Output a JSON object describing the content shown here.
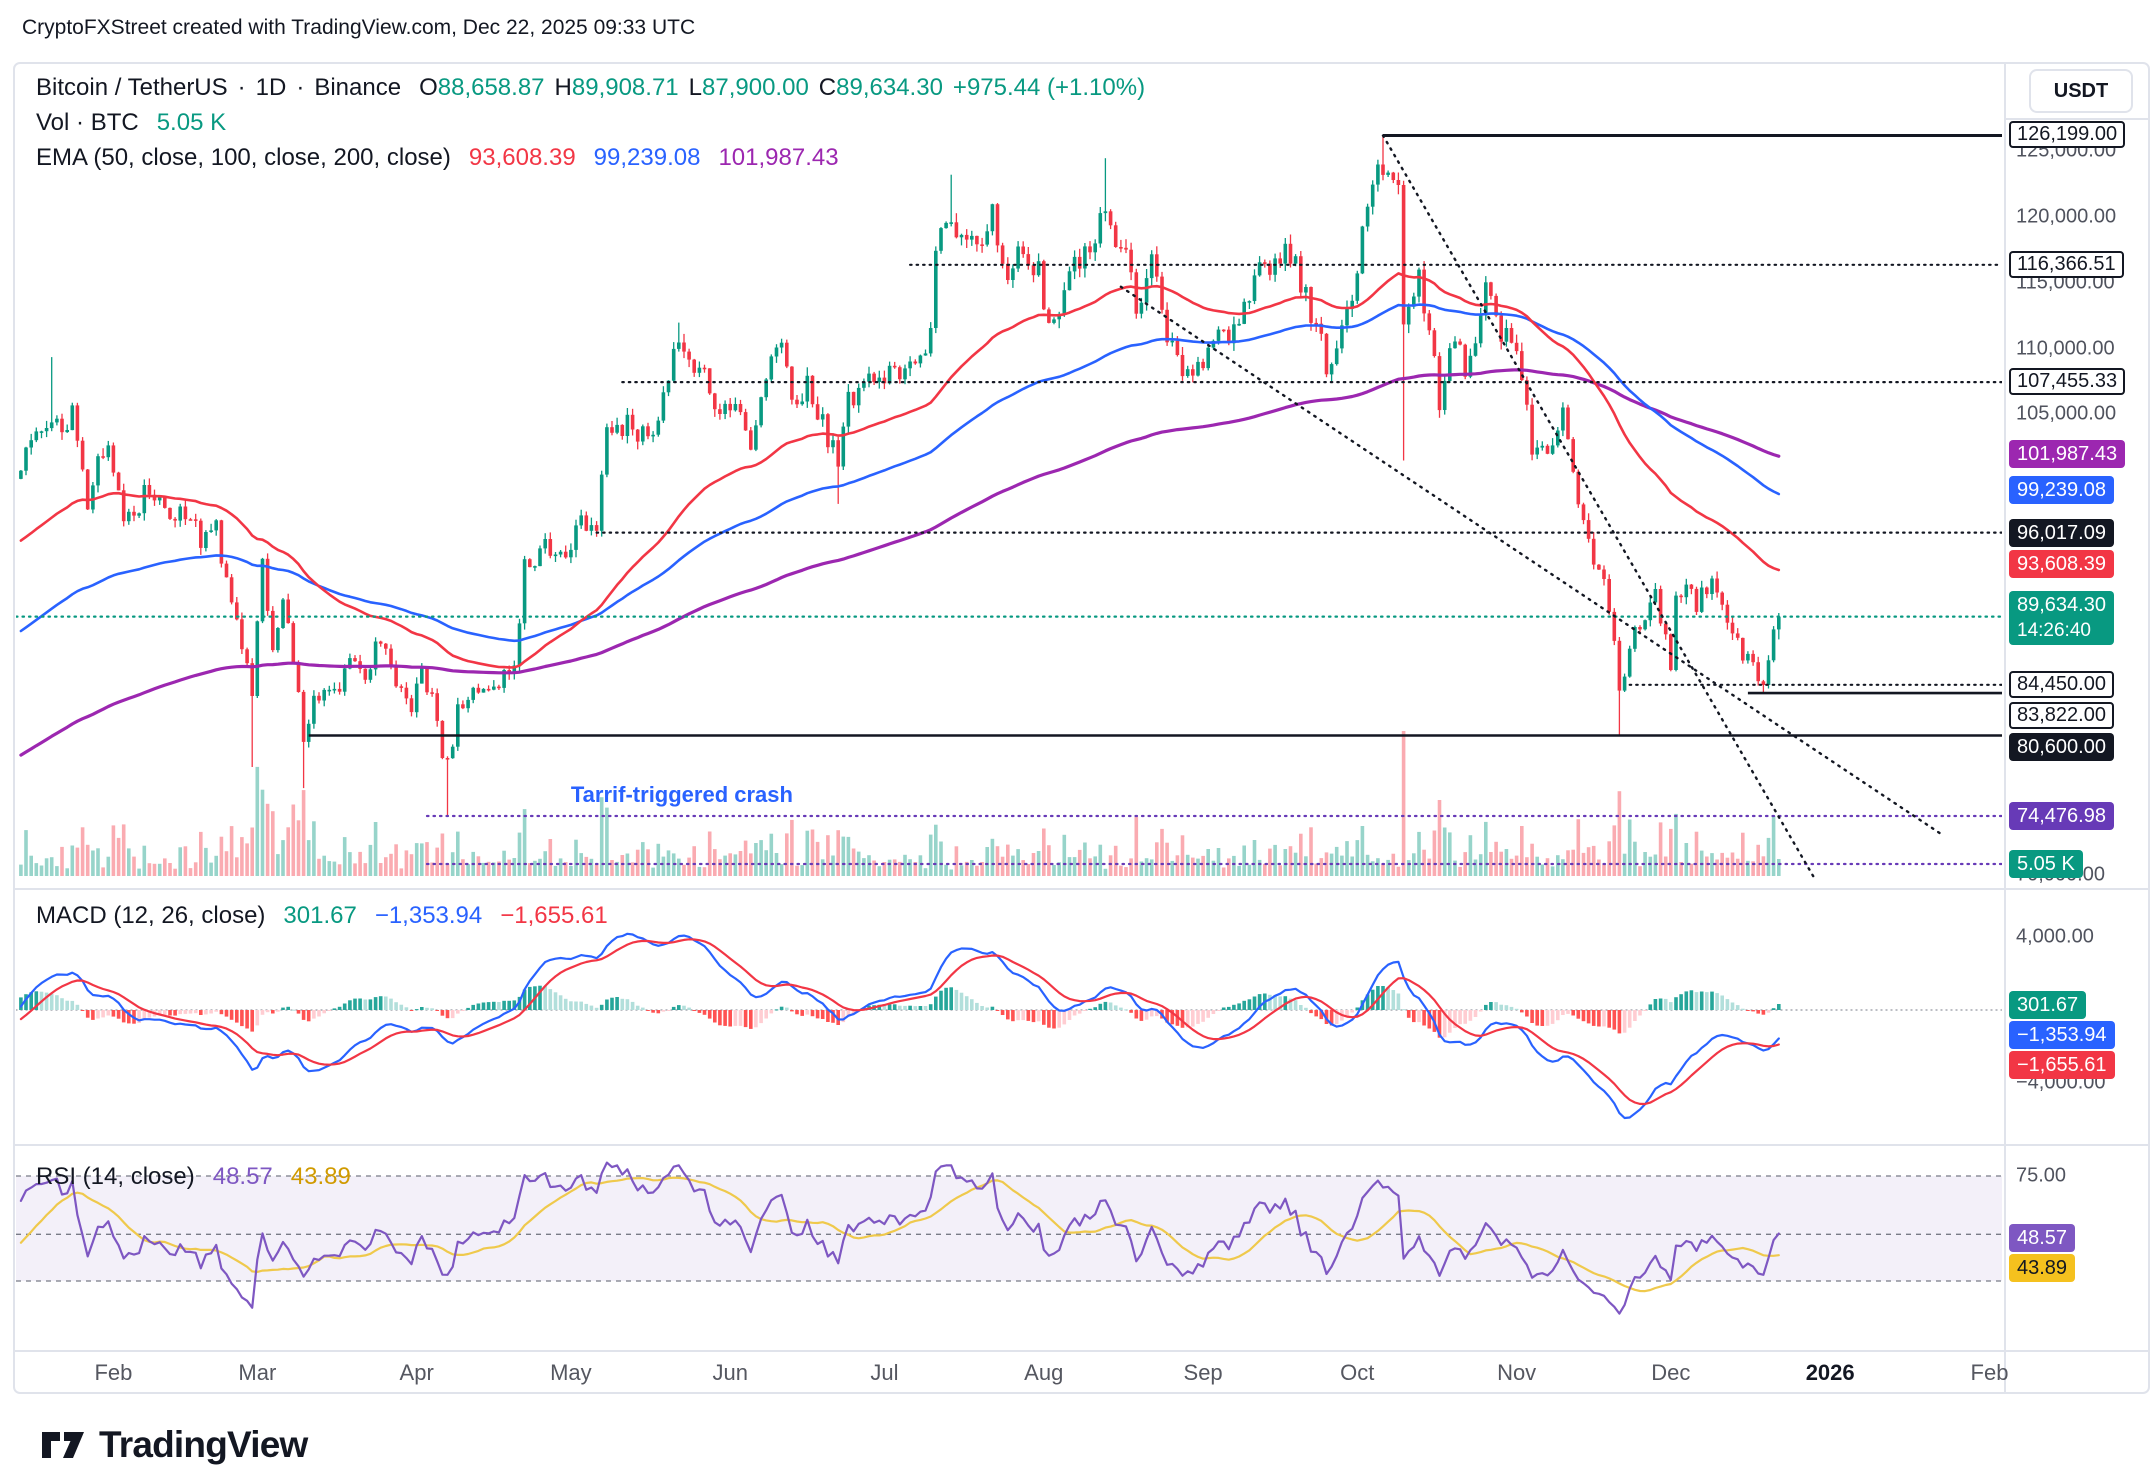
{
  "attribution": "CryptoFXStreet created with TradingView.com, Dec 22, 2025 09:33 UTC",
  "footer": {
    "brand": "TradingView"
  },
  "annotation": {
    "text": "Tarrif-triggered crash",
    "color": "#2962FF",
    "x": "2025-05-01",
    "y": 76000
  },
  "header": {
    "symbol": "Bitcoin / TetherUS",
    "sep": "·",
    "interval": "1D",
    "exchange": "Binance",
    "o_label": "O",
    "h_label": "H",
    "l_label": "L",
    "c_label": "C",
    "o": "88,658.87",
    "h": "89,908.71",
    "l": "87,900.00",
    "c": "89,634.30",
    "change": "+975.44 (+1.10%)",
    "volume_label": "Vol · BTC",
    "volume_value": "5.05 K",
    "ema_label": "EMA (50, close, 100, close, 200, close)",
    "ema_values": [
      "93,608.39",
      "99,239.08",
      "101,987.43"
    ]
  },
  "macd_pane": {
    "label": "MACD (12, 26, close)",
    "values": [
      "301.67",
      "−1,353.94",
      "−1,655.61"
    ],
    "axis_ticks": [
      {
        "label": "4,000.00",
        "value": 4000
      },
      {
        "label": "−4,000.00",
        "value": -4000
      }
    ],
    "chips": [
      {
        "label": "301.67",
        "value": 301.67,
        "color": "#089981",
        "text": "#FFFFFF"
      },
      {
        "label": "−1,353.94",
        "value": -1353.94,
        "color": "#2962FF",
        "text": "#FFFFFF"
      },
      {
        "label": "−1,655.61",
        "value": -1655.61,
        "color": "#F23645",
        "text": "#FFFFFF"
      }
    ]
  },
  "rsi_pane": {
    "label": "RSI (14, close)",
    "values": [
      "48.57",
      "43.89"
    ],
    "axis_ticks": [
      {
        "label": "75.00",
        "value": 75
      }
    ],
    "chips": [
      {
        "label": "48.57",
        "value": 48.57,
        "color": "#7E57C2",
        "text": "#FFFFFF"
      },
      {
        "label": "43.89",
        "value": 43.89,
        "color": "#F5C11E",
        "text": "#131722"
      }
    ],
    "bands": [
      75,
      50,
      30
    ]
  },
  "price_scale": {
    "currency": "USDT",
    "plain_ticks": [
      {
        "label": "125,000.00",
        "price": 125000
      },
      {
        "label": "120,000.00",
        "price": 120000
      },
      {
        "label": "115,000.00",
        "price": 115000
      },
      {
        "label": "110,000.00",
        "price": 110000
      },
      {
        "label": "105,000.00",
        "price": 105000
      },
      {
        "label": "70,000.00",
        "price": 70000
      }
    ],
    "ema_chips": [
      {
        "label": "101,987.43",
        "price": 101987.43,
        "color": "#9C27B0"
      },
      {
        "label": "99,239.08",
        "price": 99239.08,
        "color": "#2962FF"
      },
      {
        "label": "93,608.39",
        "price": 93608.39,
        "color": "#F23645"
      }
    ],
    "last_price_chip": {
      "label": "89,634.30",
      "countdown": "14:26:40",
      "price": 89634.3,
      "color": "#089981"
    },
    "volume_chip": {
      "label": "5.05 K",
      "price": 70830,
      "color": "#089981"
    }
  },
  "time_axis": {
    "ticks": [
      {
        "label": "Feb",
        "date": "2025-02-01"
      },
      {
        "label": "Mar",
        "date": "2025-03-01"
      },
      {
        "label": "Apr",
        "date": "2025-04-01"
      },
      {
        "label": "May",
        "date": "2025-05-01"
      },
      {
        "label": "Jun",
        "date": "2025-06-01"
      },
      {
        "label": "Jul",
        "date": "2025-07-01"
      },
      {
        "label": "Aug",
        "date": "2025-08-01"
      },
      {
        "label": "Sep",
        "date": "2025-09-01"
      },
      {
        "label": "Oct",
        "date": "2025-10-01"
      },
      {
        "label": "Nov",
        "date": "2025-11-01"
      },
      {
        "label": "Dec",
        "date": "2025-12-01"
      },
      {
        "label": "2026",
        "date": "2026-01-01",
        "bold": true
      },
      {
        "label": "Feb",
        "date": "2026-02-01"
      }
    ]
  },
  "colors": {
    "up": "#089981",
    "down": "#F23645",
    "ema50": "#F23645",
    "ema100": "#2962FF",
    "ema200": "#9C27B0",
    "macd_line": "#2962FF",
    "macd_signal": "#F23645",
    "hist_grow_pos": "#26A69A",
    "hist_fade_pos": "#B2DFDB",
    "hist_fall_neg": "#FF5252",
    "hist_fade_neg": "#FFCDD2",
    "rsi_line": "#7E57C2",
    "rsi_ma_line": "#EFC94C",
    "level_black": "#131722",
    "level_purple": "#673AB7",
    "last_price": "#089981",
    "annotation": "#2962FF"
  },
  "chart_data": {
    "type": "candlestick",
    "symbol": "BTCUSDT",
    "interval": "1D",
    "x_range": [
      "2025-01-14",
      "2026-02-10"
    ],
    "y_range": [
      69600,
      131600
    ],
    "indicators": {
      "ema": [
        50,
        100,
        200
      ],
      "macd": [
        12,
        26,
        9
      ],
      "rsi": 14,
      "rsi_ma": 14
    },
    "current": {
      "open": 88658.87,
      "high": 89908.71,
      "low": 87900.0,
      "close": 89634.3,
      "volume_k": 5.05,
      "macd": -1353.94,
      "macd_signal": -1655.61,
      "macd_hist": 301.67,
      "rsi": 48.57,
      "rsi_ma": 43.89,
      "ema50": 93608.39,
      "ema100": 99239.08,
      "ema200": 101987.43
    },
    "price_anchors": [
      [
        "2025-01-14",
        101000
      ],
      [
        "2025-01-17",
        104200
      ],
      [
        "2025-01-20",
        103800
      ],
      [
        "2025-01-22",
        104100
      ],
      [
        "2025-01-24",
        104800
      ],
      [
        "2025-01-27",
        98100
      ],
      [
        "2025-01-29",
        101500
      ],
      [
        "2025-01-31",
        102400
      ],
      [
        "2025-02-03",
        97600
      ],
      [
        "2025-02-05",
        96700
      ],
      [
        "2025-02-07",
        99200
      ],
      [
        "2025-02-11",
        97900
      ],
      [
        "2025-02-14",
        97600
      ],
      [
        "2025-02-18",
        95700
      ],
      [
        "2025-02-21",
        96200
      ],
      [
        "2025-02-25",
        88700
      ],
      [
        "2025-02-28",
        84300
      ],
      [
        "2025-03-02",
        94200
      ],
      [
        "2025-03-04",
        87200
      ],
      [
        "2025-03-06",
        90600
      ],
      [
        "2025-03-08",
        86200
      ],
      [
        "2025-03-10",
        80700
      ],
      [
        "2025-03-12",
        83700
      ],
      [
        "2025-03-14",
        84000
      ],
      [
        "2025-03-17",
        84000
      ],
      [
        "2025-03-19",
        86900
      ],
      [
        "2025-03-22",
        84200
      ],
      [
        "2025-03-24",
        88300
      ],
      [
        "2025-03-26",
        87200
      ],
      [
        "2025-03-28",
        84300
      ],
      [
        "2025-03-31",
        82500
      ],
      [
        "2025-04-02",
        85200
      ],
      [
        "2025-04-04",
        83800
      ],
      [
        "2025-04-06",
        78400
      ],
      [
        "2025-04-07",
        79200
      ],
      [
        "2025-04-08",
        80000
      ],
      [
        "2025-04-09",
        83100
      ],
      [
        "2025-04-11",
        83700
      ],
      [
        "2025-04-14",
        84600
      ],
      [
        "2025-04-17",
        84800
      ],
      [
        "2025-04-20",
        85200
      ],
      [
        "2025-04-22",
        93400
      ],
      [
        "2025-04-25",
        94700
      ],
      [
        "2025-04-28",
        95000
      ],
      [
        "2025-04-30",
        94200
      ],
      [
        "2025-05-02",
        96900
      ],
      [
        "2025-05-06",
        96800
      ],
      [
        "2025-05-08",
        103200
      ],
      [
        "2025-05-12",
        104100
      ],
      [
        "2025-05-14",
        103200
      ],
      [
        "2025-05-16",
        103500
      ],
      [
        "2025-05-18",
        104200
      ],
      [
        "2025-05-21",
        109700
      ],
      [
        "2025-05-22",
        111200
      ],
      [
        "2025-05-25",
        107800
      ],
      [
        "2025-05-27",
        109000
      ],
      [
        "2025-05-30",
        104600
      ],
      [
        "2025-06-02",
        105900
      ],
      [
        "2025-06-05",
        101600
      ],
      [
        "2025-06-09",
        110300
      ],
      [
        "2025-06-11",
        110000
      ],
      [
        "2025-06-13",
        106100
      ],
      [
        "2025-06-16",
        107000
      ],
      [
        "2025-06-18",
        104900
      ],
      [
        "2025-06-20",
        103400
      ],
      [
        "2025-06-22",
        100900
      ],
      [
        "2025-06-24",
        106100
      ],
      [
        "2025-06-27",
        107100
      ],
      [
        "2025-06-30",
        107600
      ],
      [
        "2025-07-02",
        108900
      ],
      [
        "2025-07-04",
        108000
      ],
      [
        "2025-07-08",
        108900
      ],
      [
        "2025-07-10",
        111300
      ],
      [
        "2025-07-11",
        117500
      ],
      [
        "2025-07-14",
        119800
      ],
      [
        "2025-07-16",
        118700
      ],
      [
        "2025-07-18",
        117900
      ],
      [
        "2025-07-22",
        119900
      ],
      [
        "2025-07-25",
        115800
      ],
      [
        "2025-07-28",
        118000
      ],
      [
        "2025-07-31",
        115700
      ],
      [
        "2025-08-02",
        112200
      ],
      [
        "2025-08-05",
        114100
      ],
      [
        "2025-08-08",
        116900
      ],
      [
        "2025-08-11",
        118800
      ],
      [
        "2025-08-13",
        120700
      ],
      [
        "2025-08-15",
        117400
      ],
      [
        "2025-08-17",
        117300
      ],
      [
        "2025-08-19",
        112900
      ],
      [
        "2025-08-22",
        116900
      ],
      [
        "2025-08-24",
        113000
      ],
      [
        "2025-08-26",
        109700
      ],
      [
        "2025-08-29",
        108400
      ],
      [
        "2025-09-01",
        109250
      ],
      [
        "2025-09-04",
        110700
      ],
      [
        "2025-09-08",
        112100
      ],
      [
        "2025-09-12",
        116100
      ],
      [
        "2025-09-18",
        117500
      ],
      [
        "2025-09-22",
        112800
      ],
      [
        "2025-09-25",
        109000
      ],
      [
        "2025-09-27",
        109700
      ],
      [
        "2025-09-30",
        114000
      ],
      [
        "2025-10-02",
        118600
      ],
      [
        "2025-10-04",
        122200
      ],
      [
        "2025-10-06",
        124100
      ],
      [
        "2025-10-08",
        122700
      ],
      [
        "2025-10-09",
        121600
      ],
      [
        "2025-10-10",
        111600
      ],
      [
        "2025-10-13",
        115200
      ],
      [
        "2025-10-15",
        111000
      ],
      [
        "2025-10-17",
        106000
      ],
      [
        "2025-10-20",
        110800
      ],
      [
        "2025-10-22",
        108000
      ],
      [
        "2025-10-26",
        114500
      ],
      [
        "2025-10-29",
        111500
      ],
      [
        "2025-11-01",
        110100
      ],
      [
        "2025-11-03",
        106500
      ],
      [
        "2025-11-04",
        101300
      ],
      [
        "2025-11-06",
        103500
      ],
      [
        "2025-11-08",
        102300
      ],
      [
        "2025-11-10",
        105900
      ],
      [
        "2025-11-13",
        99000
      ],
      [
        "2025-11-16",
        94300
      ],
      [
        "2025-11-18",
        92900
      ],
      [
        "2025-11-21",
        84600
      ],
      [
        "2025-11-24",
        88300
      ],
      [
        "2025-11-26",
        90100
      ],
      [
        "2025-11-28",
        91300
      ],
      [
        "2025-12-01",
        86200
      ],
      [
        "2025-12-02",
        91100
      ],
      [
        "2025-12-04",
        92300
      ],
      [
        "2025-12-06",
        90500
      ],
      [
        "2025-12-09",
        92800
      ],
      [
        "2025-12-11",
        90200
      ],
      [
        "2025-12-13",
        89000
      ],
      [
        "2025-12-15",
        87000
      ],
      [
        "2025-12-17",
        85500
      ],
      [
        "2025-12-19",
        84500
      ],
      [
        "2025-12-20",
        86700
      ],
      [
        "2025-12-21",
        88658.87
      ],
      [
        "2025-12-22",
        89634.3
      ]
    ],
    "key_candles": {
      "2025-01-20": {
        "high": 109356
      },
      "2025-02-28": {
        "low": 78200
      },
      "2025-03-10": {
        "low": 76600
      },
      "2025-04-07": {
        "low": 74476.98
      },
      "2025-05-22": {
        "high": 111980
      },
      "2025-06-22": {
        "low": 98200
      },
      "2025-07-14": {
        "high": 123218
      },
      "2025-08-13": {
        "high": 124474
      },
      "2025-10-06": {
        "high": 126199.0
      },
      "2025-10-10": {
        "low": 101500
      },
      "2025-11-21": {
        "low": 80600.0
      },
      "2025-12-19": {
        "low": 83822.0
      },
      "2025-12-21": {
        "close": 88658.87
      },
      "2025-12-22": {
        "open": 88658.87,
        "high": 89908.71,
        "low": 87900.0,
        "close": 89634.3
      }
    },
    "levels": [
      {
        "price": 126199.0,
        "label": "126,199.00",
        "line": "solid",
        "color": "#131722",
        "from": "2025-10-06",
        "chip": "outline",
        "width": 3
      },
      {
        "price": 116366.51,
        "label": "116,366.51",
        "line": "dotted",
        "color": "#131722",
        "from": "2025-07-06",
        "chip": "outline"
      },
      {
        "price": 107455.33,
        "label": "107,455.33",
        "line": "dotted",
        "color": "#131722",
        "from": "2025-05-11",
        "chip": "outline"
      },
      {
        "price": 96017.09,
        "label": "96,017.09",
        "line": "dotted",
        "color": "#131722",
        "from": "2025-05-06",
        "chip": "black"
      },
      {
        "price": 89634.3,
        "label": null,
        "line": "dotted",
        "color": "#089981",
        "from": "start"
      },
      {
        "price": 84450.0,
        "label": "84,450.00",
        "line": "dotted",
        "color": "#131722",
        "from": "2025-11-23",
        "chip": "outline"
      },
      {
        "price": 83822.0,
        "label": "83,822.00",
        "line": "solid",
        "color": "#131722",
        "from": "2025-12-16",
        "chip": "outline"
      },
      {
        "price": 80600.0,
        "label": "80,600.00",
        "line": "solid",
        "color": "#131722",
        "from": "2025-03-11",
        "chip": "black"
      },
      {
        "price": 74476.98,
        "label": "74,476.98",
        "line": "dotted",
        "color": "#673AB7",
        "from": "2025-04-03",
        "chip": "fill",
        "chip_color": "#673AB7"
      },
      {
        "price": 70830,
        "label": null,
        "line": "dotted",
        "color": "#673AB7",
        "from": "2025-04-03"
      }
    ],
    "trendlines": [
      {
        "x1": "2025-08-16",
        "y1": 114700,
        "x2": "2026-01-23",
        "y2": 73000,
        "style": "dotted",
        "color": "#131722"
      },
      {
        "x1": "2025-10-06",
        "y1": 126199,
        "x2": "2025-12-29",
        "y2": 69700,
        "style": "dotted",
        "color": "#131722"
      }
    ],
    "ema_warmup": [
      [
        "2024-05-01",
        58500
      ],
      [
        "2024-06-06",
        71000
      ],
      [
        "2024-07-05",
        56800
      ],
      [
        "2024-07-29",
        68200
      ],
      [
        "2024-08-05",
        54200
      ],
      [
        "2024-09-06",
        54200
      ],
      [
        "2024-09-27",
        65500
      ],
      [
        "2024-10-10",
        60300
      ],
      [
        "2024-11-05",
        69400
      ],
      [
        "2024-11-11",
        88700
      ],
      [
        "2024-11-22",
        98900
      ],
      [
        "2024-12-05",
        96600
      ],
      [
        "2024-12-17",
        106100
      ],
      [
        "2024-12-30",
        93500
      ],
      [
        "2025-01-08",
        95000
      ],
      [
        "2025-01-13",
        99500
      ]
    ]
  }
}
